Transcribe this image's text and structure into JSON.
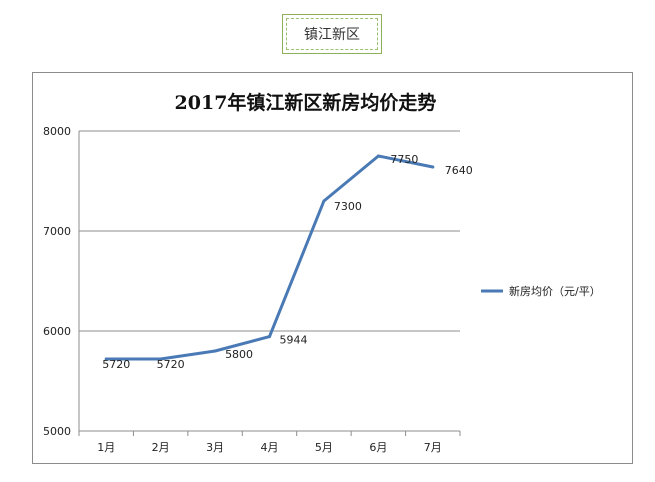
{
  "tab": {
    "label": "镇江新区"
  },
  "chart_data": {
    "type": "line",
    "title": "2017年镇江新区新房均价走势",
    "categories": [
      "1月",
      "2月",
      "3月",
      "4月",
      "5月",
      "6月",
      "7月"
    ],
    "series": [
      {
        "name": "新房均价（元/平）",
        "values": [
          5720,
          5720,
          5800,
          5944,
          7300,
          7750,
          7640
        ]
      }
    ],
    "data_labels": [
      "5720",
      "5720",
      "5800",
      "5944",
      "7300",
      "7750",
      "7640"
    ],
    "yticks": [
      5000,
      6000,
      7000,
      8000
    ],
    "ylim": [
      5000,
      8000
    ],
    "grid": true,
    "legend_position": "right",
    "colors": {
      "series": "#4a7ab5",
      "grid": "#8c8c8c",
      "axis": "#8c8c8c"
    }
  }
}
